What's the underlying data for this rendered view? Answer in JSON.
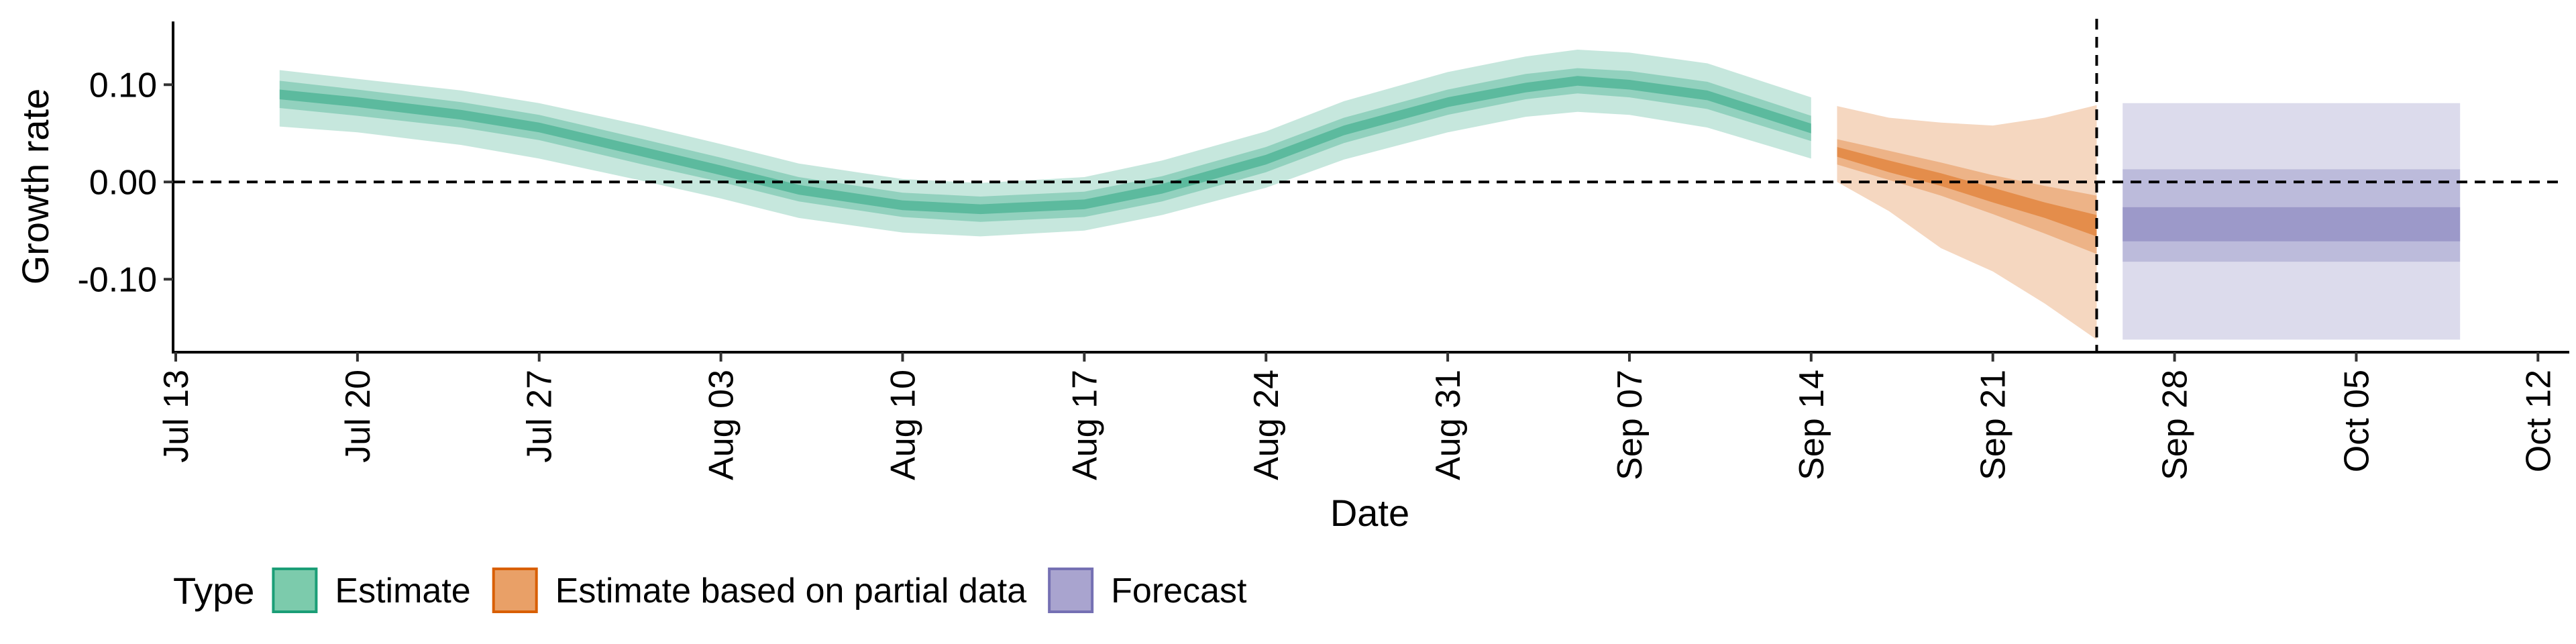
{
  "chart_data": {
    "type": "area",
    "title": "",
    "xlabel": "Date",
    "ylabel": "Growth rate",
    "x_range": [
      "2020-07-13",
      "2020-10-13"
    ],
    "y_range": [
      -0.175,
      0.165
    ],
    "x_ticks": [
      {
        "date": "2020-07-13",
        "label": "Jul 13"
      },
      {
        "date": "2020-07-20",
        "label": "Jul 20"
      },
      {
        "date": "2020-07-27",
        "label": "Jul 27"
      },
      {
        "date": "2020-08-03",
        "label": "Aug 03"
      },
      {
        "date": "2020-08-10",
        "label": "Aug 10"
      },
      {
        "date": "2020-08-17",
        "label": "Aug 17"
      },
      {
        "date": "2020-08-24",
        "label": "Aug 24"
      },
      {
        "date": "2020-08-31",
        "label": "Aug 31"
      },
      {
        "date": "2020-09-07",
        "label": "Sep 07"
      },
      {
        "date": "2020-09-14",
        "label": "Sep 14"
      },
      {
        "date": "2020-09-21",
        "label": "Sep 21"
      },
      {
        "date": "2020-09-28",
        "label": "Sep 28"
      },
      {
        "date": "2020-10-05",
        "label": "Oct 05"
      },
      {
        "date": "2020-10-12",
        "label": "Oct 12"
      }
    ],
    "y_ticks": [
      {
        "value": 0.1,
        "label": "0.10"
      },
      {
        "value": 0.0,
        "label": "0.00"
      },
      {
        "value": -0.1,
        "label": "-0.10"
      }
    ],
    "reference_lines": {
      "horizontal_y": 0.0,
      "vertical_x": "2020-09-25"
    },
    "grid": false,
    "legend": {
      "position": "bottom",
      "title": "Type",
      "entries": [
        {
          "label": "Estimate",
          "fill": "#7ccbac",
          "stroke": "#1b9e77"
        },
        {
          "label": "Estimate based on partial data",
          "fill": "#e9a067",
          "stroke": "#d95f02"
        },
        {
          "label": "Forecast",
          "fill": "#a9a4cf",
          "stroke": "#7570b3"
        }
      ]
    },
    "series": [
      {
        "type_label": "Estimate",
        "color": "#1b9e77",
        "points": [
          {
            "x": "2020-07-17",
            "lo90": 0.057,
            "lo50": 0.076,
            "lo20": 0.085,
            "hi20": 0.095,
            "hi50": 0.104,
            "hi90": 0.115
          },
          {
            "x": "2020-07-20",
            "lo90": 0.051,
            "lo50": 0.068,
            "lo20": 0.077,
            "hi20": 0.087,
            "hi50": 0.095,
            "hi90": 0.106
          },
          {
            "x": "2020-07-24",
            "lo90": 0.038,
            "lo50": 0.056,
            "lo20": 0.064,
            "hi20": 0.074,
            "hi50": 0.082,
            "hi90": 0.094
          },
          {
            "x": "2020-07-27",
            "lo90": 0.024,
            "lo50": 0.043,
            "lo20": 0.051,
            "hi20": 0.061,
            "hi50": 0.069,
            "hi90": 0.081
          },
          {
            "x": "2020-07-31",
            "lo90": 0.001,
            "lo50": 0.018,
            "lo20": 0.026,
            "hi20": 0.036,
            "hi50": 0.044,
            "hi90": 0.058
          },
          {
            "x": "2020-08-03",
            "lo90": -0.017,
            "lo50": 0.0,
            "lo20": 0.007,
            "hi20": 0.017,
            "hi50": 0.025,
            "hi90": 0.039
          },
          {
            "x": "2020-08-06",
            "lo90": -0.037,
            "lo50": -0.02,
            "lo20": -0.013,
            "hi20": -0.003,
            "hi50": 0.005,
            "hi90": 0.019
          },
          {
            "x": "2020-08-10",
            "lo90": -0.052,
            "lo50": -0.036,
            "lo20": -0.029,
            "hi20": -0.019,
            "hi50": -0.011,
            "hi90": 0.003
          },
          {
            "x": "2020-08-13",
            "lo90": -0.056,
            "lo50": -0.041,
            "lo20": -0.033,
            "hi20": -0.023,
            "hi50": -0.015,
            "hi90": -0.001
          },
          {
            "x": "2020-08-17",
            "lo90": -0.05,
            "lo50": -0.036,
            "lo20": -0.028,
            "hi20": -0.018,
            "hi50": -0.01,
            "hi90": 0.005
          },
          {
            "x": "2020-08-20",
            "lo90": -0.034,
            "lo50": -0.02,
            "lo20": -0.012,
            "hi20": -0.002,
            "hi50": 0.006,
            "hi90": 0.022
          },
          {
            "x": "2020-08-24",
            "lo90": -0.006,
            "lo50": 0.01,
            "lo20": 0.018,
            "hi20": 0.028,
            "hi50": 0.036,
            "hi90": 0.052
          },
          {
            "x": "2020-08-27",
            "lo90": 0.023,
            "lo50": 0.04,
            "lo20": 0.048,
            "hi20": 0.058,
            "hi50": 0.066,
            "hi90": 0.083
          },
          {
            "x": "2020-08-31",
            "lo90": 0.051,
            "lo50": 0.069,
            "lo20": 0.077,
            "hi20": 0.087,
            "hi50": 0.095,
            "hi90": 0.113
          },
          {
            "x": "2020-09-03",
            "lo90": 0.067,
            "lo50": 0.085,
            "lo20": 0.092,
            "hi20": 0.102,
            "hi50": 0.111,
            "hi90": 0.129
          },
          {
            "x": "2020-09-05",
            "lo90": 0.072,
            "lo50": 0.091,
            "lo20": 0.099,
            "hi20": 0.109,
            "hi50": 0.117,
            "hi90": 0.136
          },
          {
            "x": "2020-09-07",
            "lo90": 0.069,
            "lo50": 0.087,
            "lo20": 0.095,
            "hi20": 0.105,
            "hi50": 0.114,
            "hi90": 0.133
          },
          {
            "x": "2020-09-10",
            "lo90": 0.056,
            "lo50": 0.075,
            "lo20": 0.084,
            "hi20": 0.094,
            "hi50": 0.103,
            "hi90": 0.122
          },
          {
            "x": "2020-09-14",
            "lo90": 0.024,
            "lo50": 0.042,
            "lo20": 0.05,
            "hi20": 0.06,
            "hi50": 0.068,
            "hi90": 0.087
          }
        ]
      },
      {
        "type_label": "Estimate based on partial data",
        "color": "#d95f02",
        "points": [
          {
            "x": "2020-09-15",
            "lo90": 0.0,
            "lo50": 0.018,
            "lo20": 0.026,
            "hi20": 0.036,
            "hi50": 0.044,
            "hi90": 0.078
          },
          {
            "x": "2020-09-17",
            "lo90": -0.03,
            "lo50": 0.002,
            "lo20": 0.01,
            "hi20": 0.022,
            "hi50": 0.032,
            "hi90": 0.066
          },
          {
            "x": "2020-09-19",
            "lo90": -0.068,
            "lo50": -0.014,
            "lo20": -0.004,
            "hi20": 0.009,
            "hi50": 0.02,
            "hi90": 0.061
          },
          {
            "x": "2020-09-21",
            "lo90": -0.092,
            "lo50": -0.033,
            "lo20": -0.021,
            "hi20": -0.006,
            "hi50": 0.007,
            "hi90": 0.058
          },
          {
            "x": "2020-09-23",
            "lo90": -0.125,
            "lo50": -0.053,
            "lo20": -0.037,
            "hi20": -0.021,
            "hi50": -0.004,
            "hi90": 0.066
          },
          {
            "x": "2020-09-25",
            "lo90": -0.162,
            "lo50": -0.074,
            "lo20": -0.056,
            "hi20": -0.034,
            "hi50": -0.014,
            "hi90": 0.079
          }
        ]
      },
      {
        "type_label": "Forecast",
        "color": "#7570b3",
        "points": [
          {
            "x": "2020-09-26",
            "lo90": -0.162,
            "lo50": -0.082,
            "lo20": -0.061,
            "hi20": -0.026,
            "hi50": 0.013,
            "hi90": 0.081
          },
          {
            "x": "2020-10-09",
            "lo90": -0.162,
            "lo50": -0.082,
            "lo20": -0.061,
            "hi20": -0.026,
            "hi50": 0.013,
            "hi90": 0.081
          }
        ]
      }
    ]
  }
}
